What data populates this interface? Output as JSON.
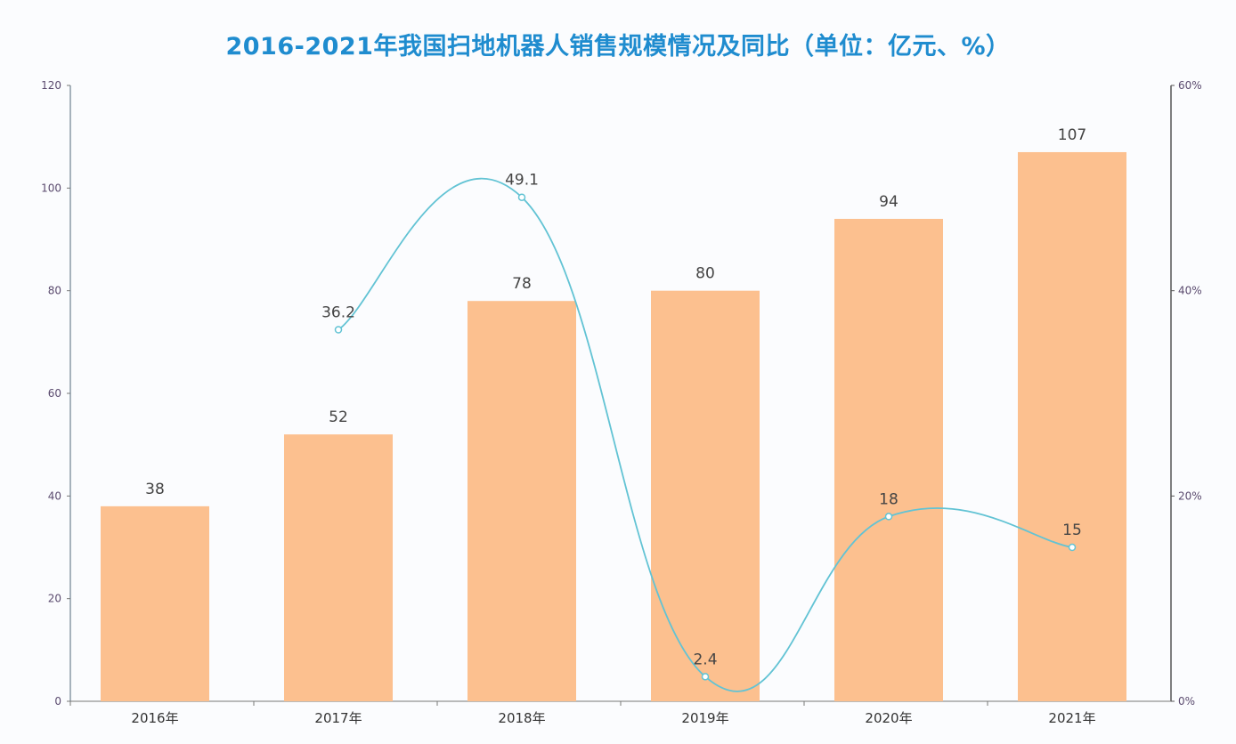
{
  "chart_data": {
    "type": "bar+line",
    "title": "2016-2021年我国扫地机器人销售规模情况及同比（单位：亿元、%）",
    "categories": [
      "2016年",
      "2017年",
      "2018年",
      "2019年",
      "2020年",
      "2021年"
    ],
    "series": [
      {
        "name": "销售规模",
        "type": "bar",
        "axis": "left",
        "values": [
          38,
          52,
          78,
          80,
          94,
          107
        ],
        "labels": [
          "38",
          "52",
          "78",
          "80",
          "94",
          "107"
        ],
        "color": "#fcc08f"
      },
      {
        "name": "同比",
        "type": "line",
        "axis": "right",
        "values": [
          null,
          36.2,
          49.1,
          2.4,
          18,
          15
        ],
        "labels": [
          "",
          "36.2",
          "49.1",
          "2.4",
          "18",
          "15"
        ],
        "color": "#62c3d4"
      }
    ],
    "y_left": {
      "ylim": [
        0,
        120
      ],
      "ticks": [
        "0",
        "20",
        "40",
        "60",
        "80",
        "100",
        "120"
      ]
    },
    "y_right": {
      "ylim": [
        0,
        60
      ],
      "ticks": [
        "0%",
        "20%",
        "40%",
        "60%"
      ]
    },
    "grid": false,
    "legend": "none"
  }
}
